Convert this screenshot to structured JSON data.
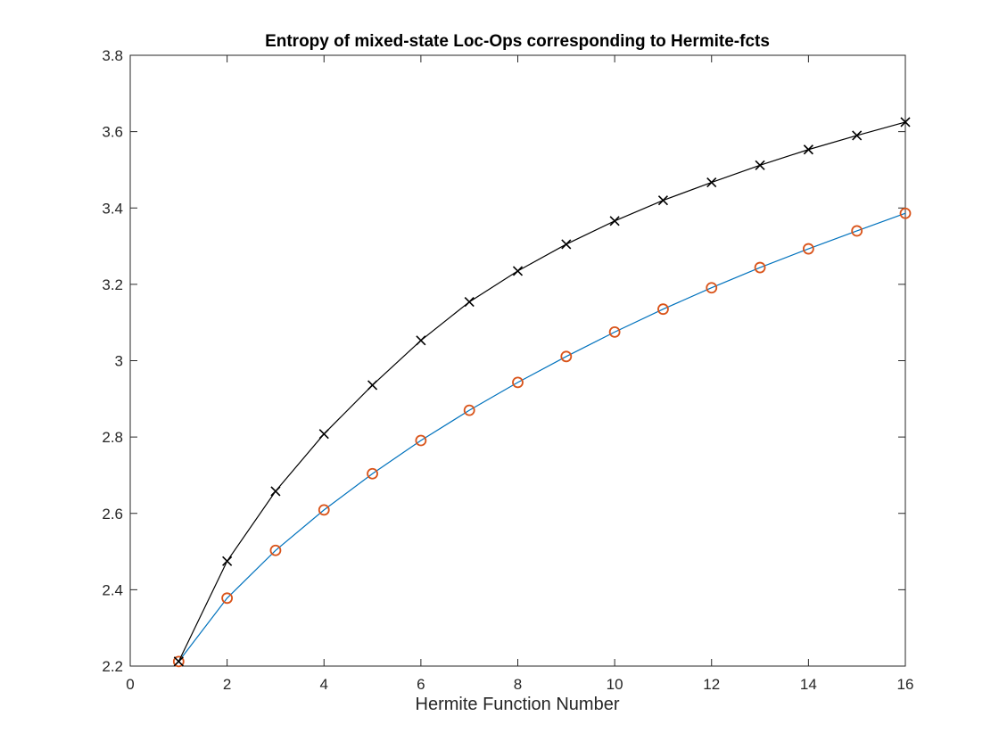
{
  "chart_data": {
    "type": "line",
    "title": "Entropy of mixed-state Loc-Ops corresponding to Hermite-fcts",
    "xlabel": "Hermite Function Number",
    "ylabel": "",
    "xlim": [
      0,
      16
    ],
    "ylim": [
      2.2,
      3.8
    ],
    "xticks": [
      0,
      2,
      4,
      6,
      8,
      10,
      12,
      14,
      16
    ],
    "yticks": [
      2.2,
      2.4,
      2.6,
      2.8,
      3.0,
      3.2,
      3.4,
      3.6,
      3.8
    ],
    "xtick_labels": [
      "0",
      "2",
      "4",
      "6",
      "8",
      "10",
      "12",
      "14",
      "16"
    ],
    "ytick_labels": [
      "2.2",
      "2.4",
      "2.6",
      "2.8",
      "3",
      "3.2",
      "3.4",
      "3.6",
      "3.8"
    ],
    "grid": false,
    "legend": "none",
    "x": [
      1,
      2,
      3,
      4,
      5,
      6,
      7,
      8,
      9,
      10,
      11,
      12,
      13,
      14,
      15,
      16
    ],
    "series": [
      {
        "marker": "x",
        "line_color": "#000000",
        "marker_color": "#000000",
        "values": [
          2.212,
          2.475,
          2.658,
          2.808,
          2.936,
          3.053,
          3.154,
          3.235,
          3.305,
          3.366,
          3.42,
          3.467,
          3.512,
          3.553,
          3.59,
          3.625
        ]
      },
      {
        "marker": "o",
        "line_color": "#0072BD",
        "marker_color": "#D95319",
        "values": [
          2.212,
          2.378,
          2.503,
          2.609,
          2.704,
          2.791,
          2.87,
          2.943,
          3.011,
          3.075,
          3.135,
          3.191,
          3.244,
          3.293,
          3.34,
          3.386
        ]
      }
    ]
  }
}
